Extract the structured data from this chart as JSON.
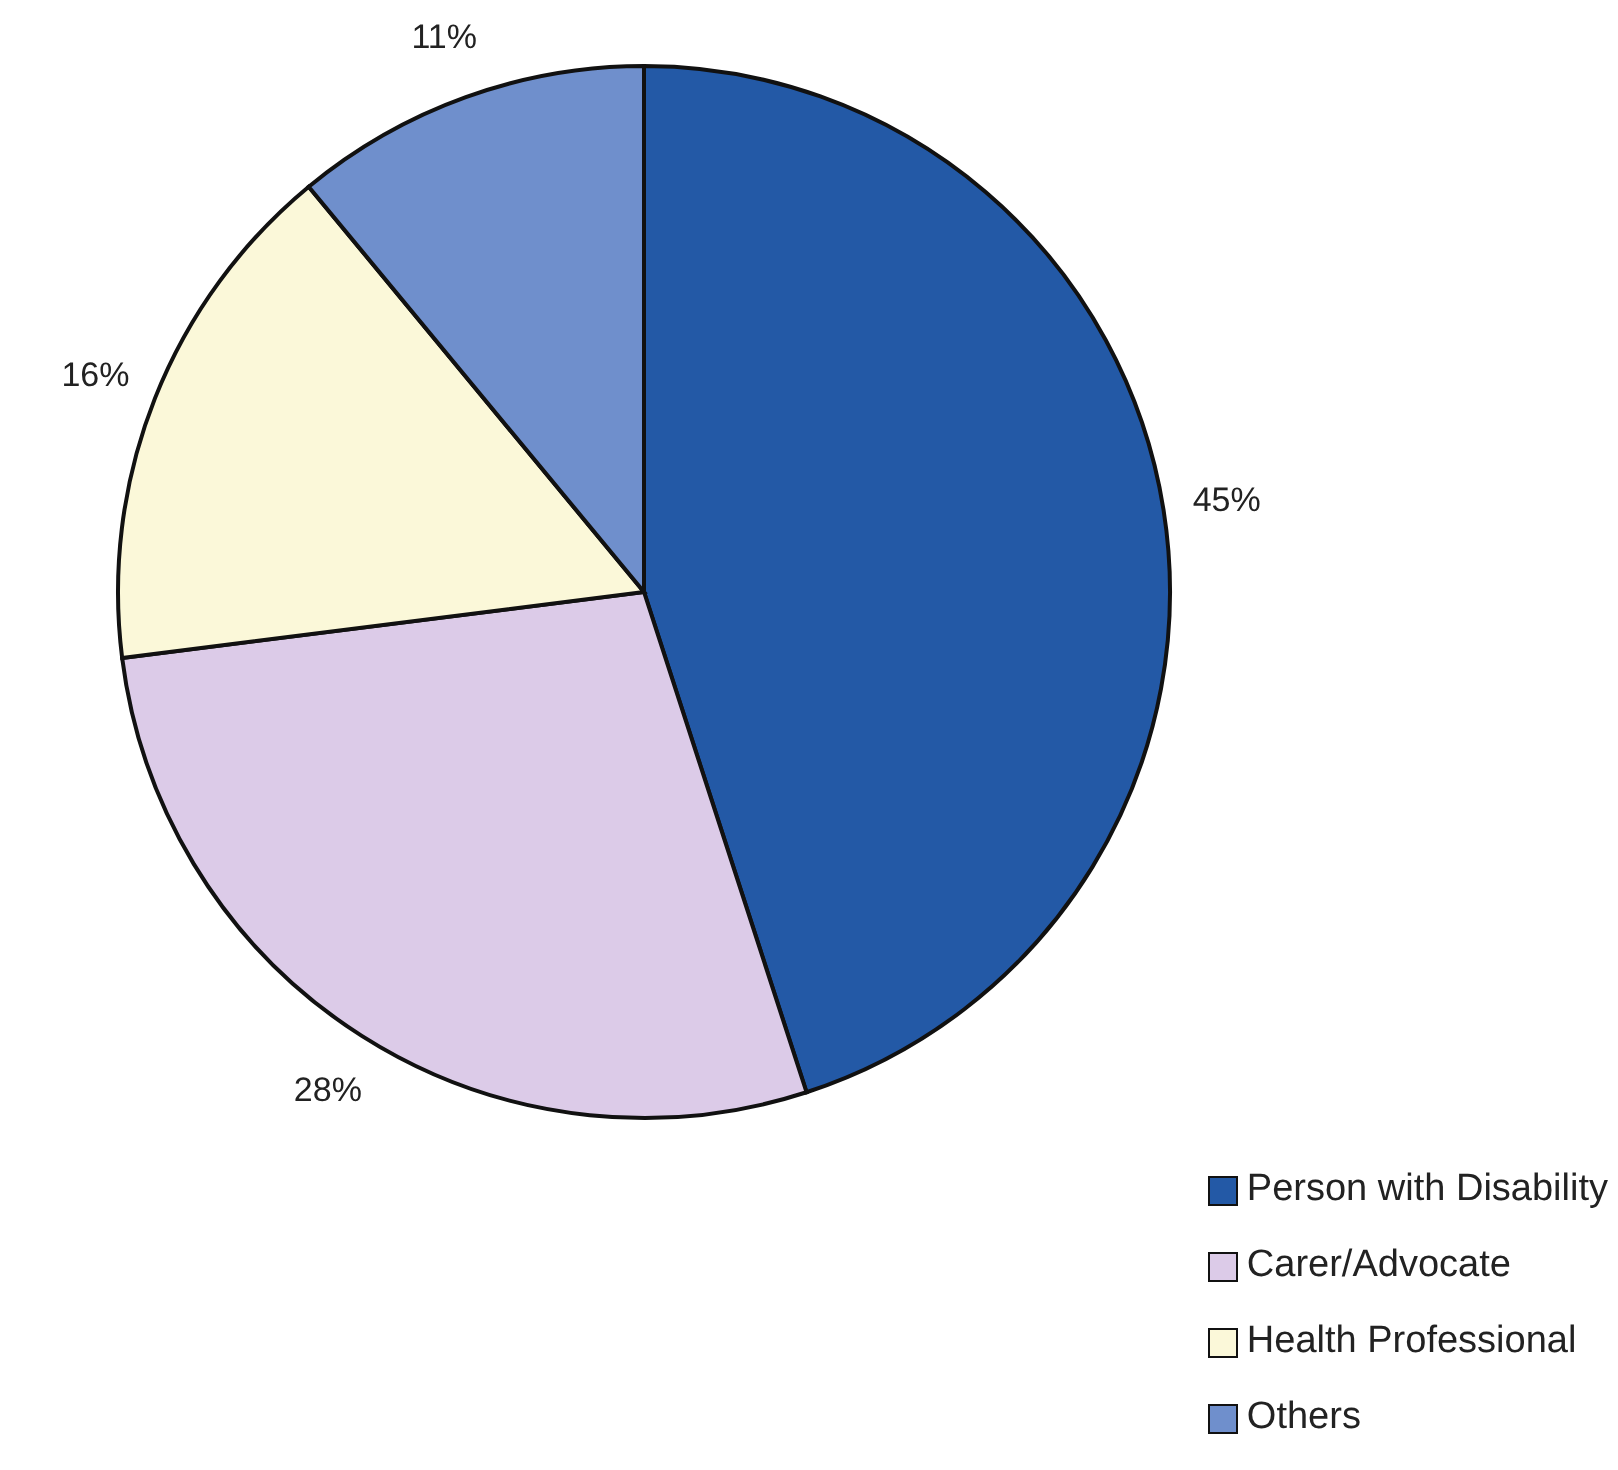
{
  "chart_data": {
    "type": "pie",
    "categories": [
      "Person with Disability",
      "Carer/Advocate",
      "Health Professional",
      "Others"
    ],
    "values": [
      45,
      28,
      16,
      11
    ],
    "value_labels": [
      "45%",
      "28%",
      "16%",
      "11%"
    ],
    "colors": [
      "#2359a6",
      "#dccbe8",
      "#fbf8d9",
      "#6f8fcc"
    ],
    "legend": "bottom right"
  }
}
